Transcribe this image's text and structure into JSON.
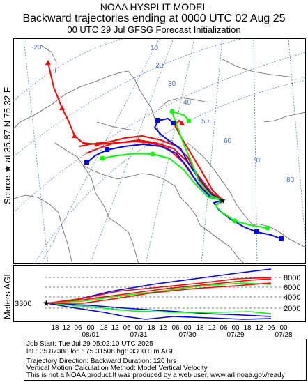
{
  "header": {
    "line1": "NOAA HYSPLIT MODEL",
    "line2": "Backward trajectories ending at 0000 UTC 02 Aug 25",
    "line3": "00 UTC 29 Jul    GFSG  Forecast Initialization"
  },
  "side_label": {
    "source_text": "Source ★ at   35.87 N   75.32 E",
    "meters_agl": "Meters AGL"
  },
  "map": {
    "graticule_labels": [
      "-20",
      "10",
      "20",
      "30",
      "40",
      "50",
      "60",
      "70",
      "80"
    ],
    "source_star": "★"
  },
  "height_panel": {
    "start_height_label": "3300",
    "right_axis_labels": [
      "8000",
      "6000",
      "4000",
      "2000"
    ],
    "hour_ticks": [
      "18",
      "12",
      "06",
      "00",
      "18",
      "12",
      "06",
      "00",
      "18",
      "12",
      "06",
      "00",
      "18",
      "12",
      "06",
      "00",
      "18",
      "12",
      "06",
      "00"
    ],
    "date_labels": [
      "08/01",
      "07/31",
      "07/30",
      "07/29",
      "07/28"
    ]
  },
  "job_info": {
    "line1": "Job Start: Tue Jul 29 05:02:10 UTC 2025",
    "line2": "lat.: 35.87388   lon.: 75.31506   hgt: 3300.0 m AGL",
    "line3": "Trajectory Direction: Backward        Duration: 120 hrs",
    "line4": "Vertical Motion Calculation Method: Model Vertical Velocity",
    "line5": "This is not a NOAA product.It was produced by a web user. www.arl.noaa.gov/ready"
  },
  "colors": {
    "red": "#ff0000",
    "blue": "#0000ff",
    "green": "#00ff00",
    "graticule": "#4a6fb5",
    "coast": "#606060"
  }
}
